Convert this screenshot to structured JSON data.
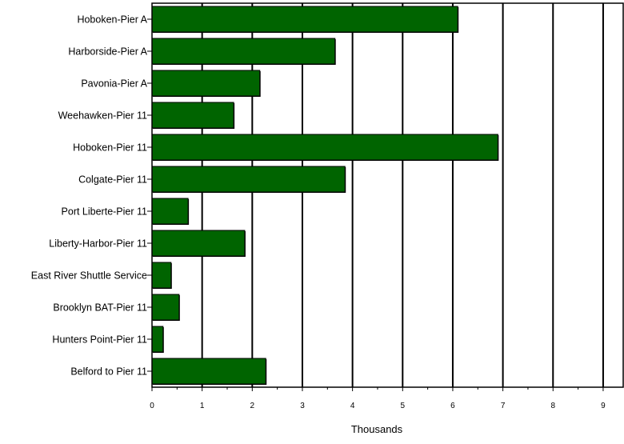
{
  "chart_data": {
    "type": "bar",
    "orientation": "horizontal",
    "categories": [
      "Hoboken-Pier A",
      "Harborside-Pier A",
      "Pavonia-Pier A",
      "Weehawken-Pier 11",
      "Hoboken-Pier 11",
      "Colgate-Pier 11",
      "Port Liberte-Pier 11",
      "Liberty-Harbor-Pier 11",
      "East River Shuttle Service",
      "Brooklyn BAT-Pier 11",
      "Hunters Point-Pier 11",
      "Belford to Pier 11"
    ],
    "values": [
      6.1,
      3.65,
      2.15,
      1.63,
      6.9,
      3.85,
      0.72,
      1.85,
      0.38,
      0.54,
      0.22,
      2.27
    ],
    "xlabel": "Thousands",
    "ylabel": "",
    "xlim": [
      0,
      9.4
    ],
    "xticks": [
      "0",
      "1",
      "2",
      "3",
      "4",
      "5",
      "6",
      "7",
      "8",
      "9"
    ],
    "grid": "vertical",
    "bar_color": "#006400",
    "legend": "none"
  }
}
